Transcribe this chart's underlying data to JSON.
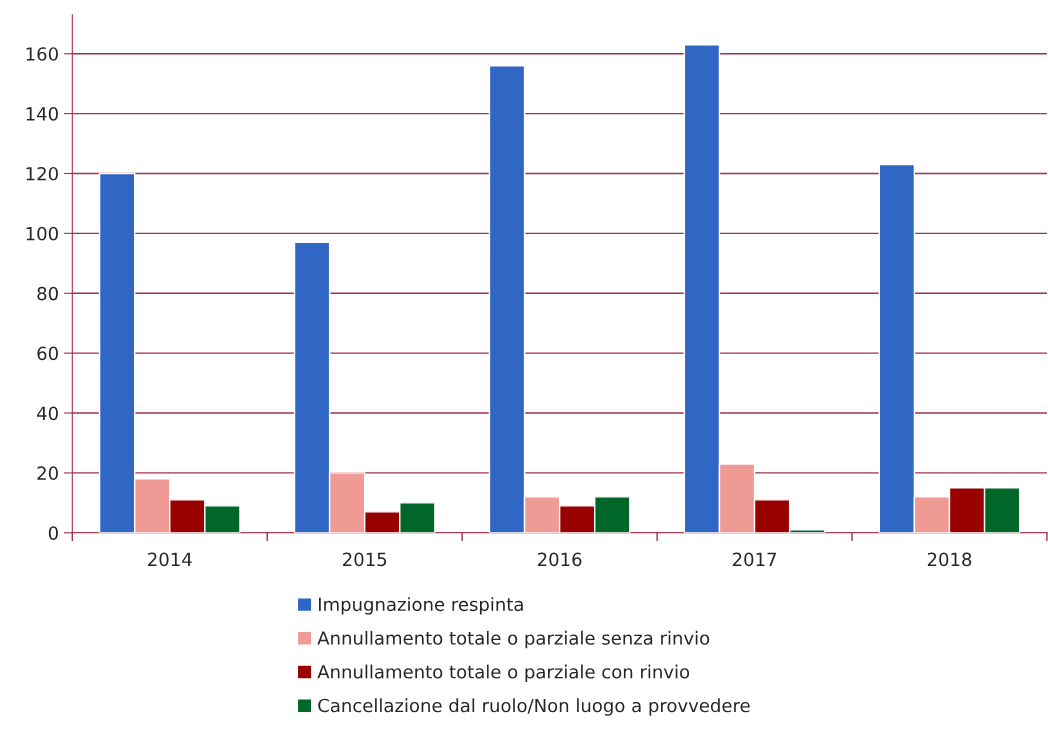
{
  "chart_data": {
    "type": "bar",
    "categories": [
      "2014",
      "2015",
      "2016",
      "2017",
      "2018"
    ],
    "series": [
      {
        "name": "Impugnazione respinta",
        "color": "#3066c4",
        "values": [
          120,
          97,
          156,
          163,
          123
        ]
      },
      {
        "name": "Annullamento totale o parziale senza rinvio",
        "color": "#f09a96",
        "values": [
          18,
          20,
          12,
          23,
          12
        ]
      },
      {
        "name": "Annullamento totale o parziale con rinvio",
        "color": "#990000",
        "values": [
          11,
          7,
          9,
          11,
          15
        ]
      },
      {
        "name": "Cancellazione dal ruolo/Non luogo a provvedere",
        "color": "#006629",
        "values": [
          9,
          10,
          12,
          1,
          15
        ]
      }
    ],
    "ylim": [
      0,
      173
    ],
    "yticks": [
      0,
      20,
      40,
      60,
      80,
      100,
      120,
      140,
      160
    ],
    "grid": "y",
    "legend": "bottom"
  }
}
